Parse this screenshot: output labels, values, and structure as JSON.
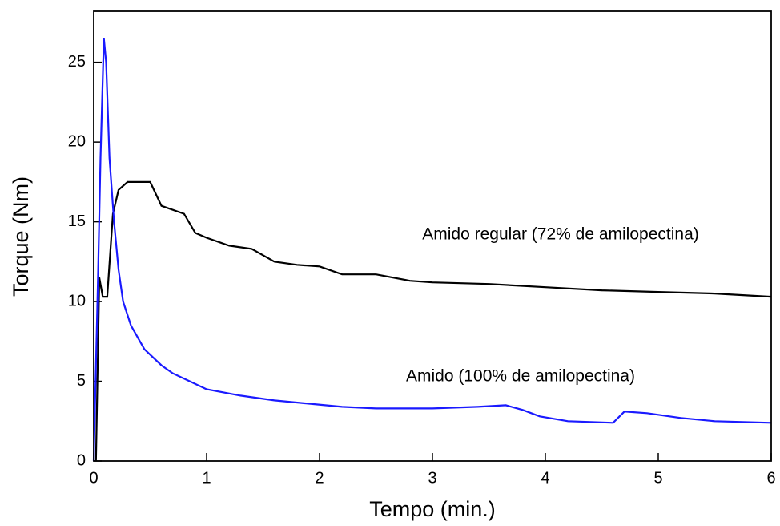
{
  "chart_data": {
    "type": "line",
    "x_label": "Tempo (min.)",
    "y_label": "Torque (Nm)",
    "xlim": [
      0,
      6
    ],
    "xticks": [
      0,
      1,
      2,
      3,
      4,
      5,
      6
    ],
    "ylim": [
      0,
      28.2
    ],
    "yticks": [
      0,
      5,
      10,
      15,
      20,
      25
    ],
    "series": [
      {
        "name": "Amido regular (72% de amilopectina)",
        "color": "#000000",
        "x": [
          0.02,
          0.05,
          0.08,
          0.12,
          0.17,
          0.22,
          0.3,
          0.5,
          0.6,
          0.8,
          0.9,
          1.0,
          1.2,
          1.4,
          1.6,
          1.8,
          2.0,
          2.2,
          2.5,
          2.8,
          3.0,
          3.5,
          4.0,
          4.5,
          5.0,
          5.5,
          6.0
        ],
        "values": [
          0,
          11.5,
          10.3,
          10.3,
          15.5,
          17,
          17.5,
          17.5,
          16,
          15.5,
          14.3,
          14,
          13.5,
          13.3,
          12.5,
          12.3,
          12.2,
          11.7,
          11.7,
          11.3,
          11.2,
          11.1,
          10.9,
          10.7,
          10.6,
          10.5,
          10.3
        ]
      },
      {
        "name": "Amido (100% de amilopectina)",
        "color": "#1a1aff",
        "x": [
          0.0,
          0.04,
          0.06,
          0.09,
          0.11,
          0.14,
          0.18,
          0.22,
          0.26,
          0.33,
          0.45,
          0.6,
          0.7,
          0.85,
          1.0,
          1.3,
          1.6,
          1.9,
          2.2,
          2.5,
          3.0,
          3.4,
          3.65,
          3.8,
          3.95,
          4.2,
          4.6,
          4.7,
          4.9,
          5.2,
          5.5,
          6.0
        ],
        "values": [
          0,
          12,
          19,
          26.5,
          25,
          19,
          15,
          12,
          10,
          8.5,
          7,
          6,
          5.5,
          5,
          4.5,
          4.1,
          3.8,
          3.6,
          3.4,
          3.3,
          3.3,
          3.4,
          3.5,
          3.2,
          2.8,
          2.5,
          2.4,
          3.1,
          3.0,
          2.7,
          2.5,
          2.4
        ]
      }
    ]
  }
}
